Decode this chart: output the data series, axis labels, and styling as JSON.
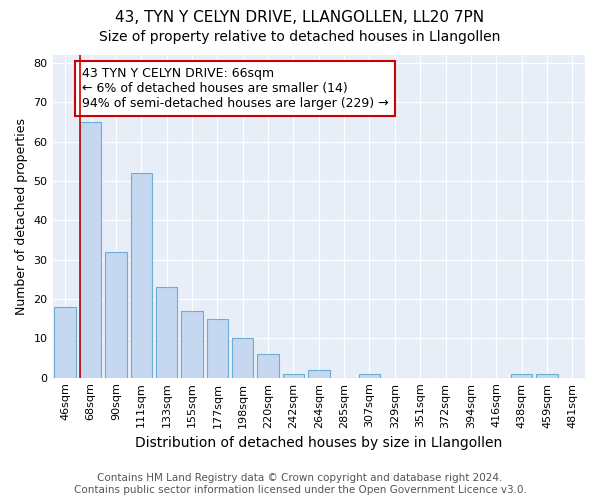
{
  "title": "43, TYN Y CELYN DRIVE, LLANGOLLEN, LL20 7PN",
  "subtitle": "Size of property relative to detached houses in Llangollen",
  "xlabel": "Distribution of detached houses by size in Llangollen",
  "ylabel": "Number of detached properties",
  "bar_labels": [
    "46sqm",
    "68sqm",
    "90sqm",
    "111sqm",
    "133sqm",
    "155sqm",
    "177sqm",
    "198sqm",
    "220sqm",
    "242sqm",
    "264sqm",
    "285sqm",
    "307sqm",
    "329sqm",
    "351sqm",
    "372sqm",
    "394sqm",
    "416sqm",
    "438sqm",
    "459sqm",
    "481sqm"
  ],
  "bar_values": [
    18,
    65,
    32,
    52,
    23,
    17,
    15,
    10,
    6,
    1,
    2,
    0,
    1,
    0,
    0,
    0,
    0,
    0,
    1,
    1,
    0
  ],
  "bar_color": "#c5d8ef",
  "bar_edge_color": "#6aaed6",
  "highlight_color": "#cc0000",
  "annotation_text": "43 TYN Y CELYN DRIVE: 66sqm\n← 6% of detached houses are smaller (14)\n94% of semi-detached houses are larger (229) →",
  "annotation_box_color": "#ffffff",
  "annotation_box_edge": "#cc0000",
  "ylim": [
    0,
    82
  ],
  "yticks": [
    0,
    10,
    20,
    30,
    40,
    50,
    60,
    70,
    80
  ],
  "plot_bg_color": "#e8eef7",
  "footer_line1": "Contains HM Land Registry data © Crown copyright and database right 2024.",
  "footer_line2": "Contains public sector information licensed under the Open Government Licence v3.0.",
  "title_fontsize": 11,
  "subtitle_fontsize": 10,
  "xlabel_fontsize": 10,
  "ylabel_fontsize": 9,
  "tick_fontsize": 8,
  "annotation_fontsize": 9,
  "footer_fontsize": 7.5
}
